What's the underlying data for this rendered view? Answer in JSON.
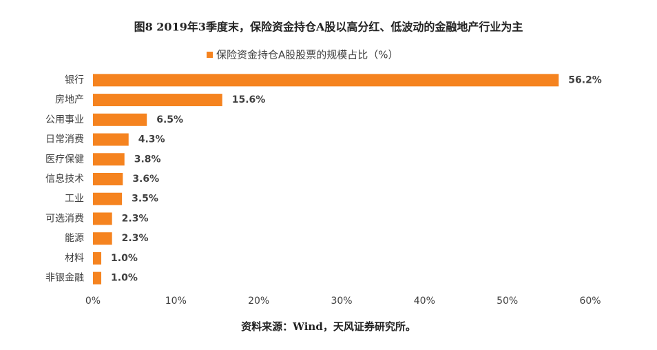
{
  "chart_data": {
    "type": "bar",
    "orientation": "horizontal",
    "title": "图8 2019年3季度末，保险资金持仓A股以高分红、低波动的金融地产行业为主",
    "source": "资料来源：Wind，天风证券研究所。",
    "categories": [
      "银行",
      "房地产",
      "公用事业",
      "日常消费",
      "医疗保健",
      "信息技术",
      "工业",
      "可选消费",
      "能源",
      "材料",
      "非银金融"
    ],
    "series": [
      {
        "name": "保险资金持仓A股股票的规模占比（%）",
        "color": "#f5831f",
        "values": [
          56.2,
          15.6,
          6.5,
          4.3,
          3.8,
          3.6,
          3.5,
          2.3,
          2.3,
          1.0,
          1.0
        ],
        "value_labels": [
          "56.2%",
          "15.6%",
          "6.5%",
          "4.3%",
          "3.8%",
          "3.6%",
          "3.5%",
          "2.3%",
          "2.3%",
          "1.0%",
          "1.0%"
        ]
      }
    ],
    "xlim": [
      0,
      60
    ],
    "xticks": [
      {
        "value": 0,
        "label": "0%"
      },
      {
        "value": 10,
        "label": "10%"
      },
      {
        "value": 20,
        "label": "20%"
      },
      {
        "value": 30,
        "label": "30%"
      },
      {
        "value": 40,
        "label": "40%"
      },
      {
        "value": 50,
        "label": "50%"
      },
      {
        "value": 60,
        "label": "60%"
      }
    ],
    "legend": "top",
    "grid": false
  }
}
